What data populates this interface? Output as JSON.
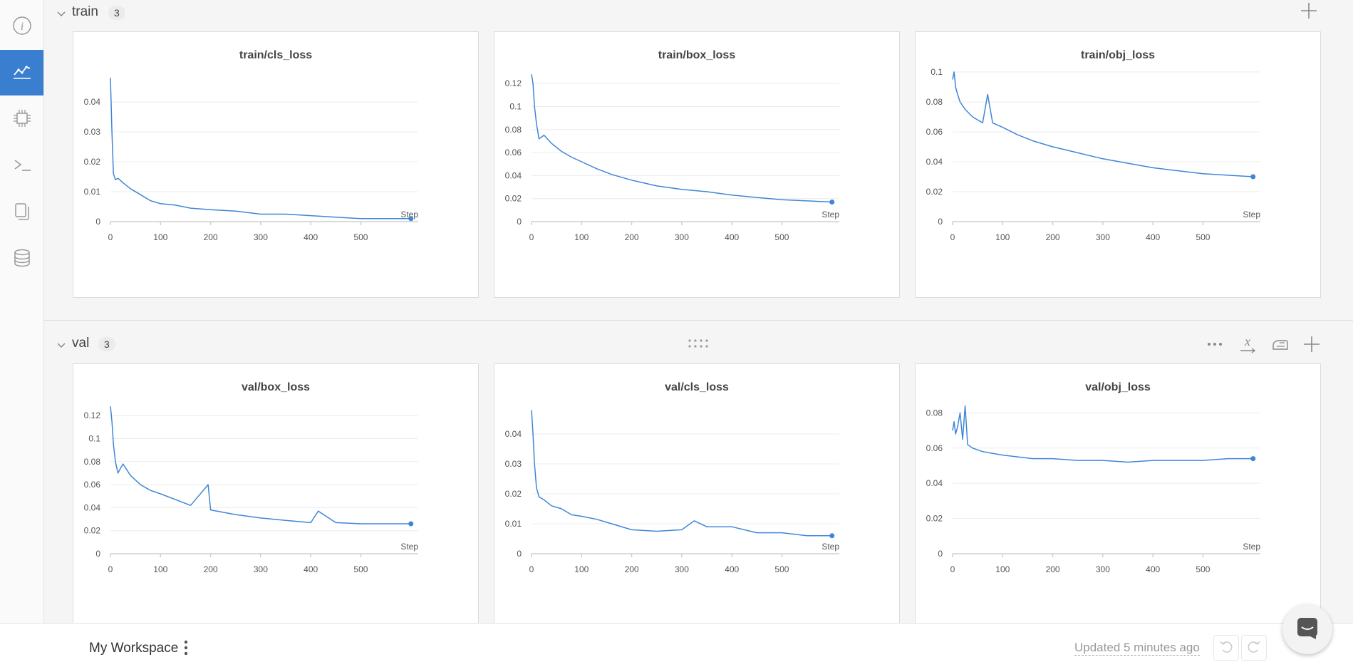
{
  "sidebar": {
    "items": [
      {
        "icon": "info-icon",
        "active": false
      },
      {
        "icon": "charts-icon",
        "active": true
      },
      {
        "icon": "chip-icon",
        "active": false
      },
      {
        "icon": "terminal-icon",
        "active": false
      },
      {
        "icon": "files-icon",
        "active": false
      },
      {
        "icon": "database-icon",
        "active": false
      }
    ]
  },
  "sections": [
    {
      "title": "train",
      "count": "3"
    },
    {
      "title": "val",
      "count": "3"
    }
  ],
  "toolbar": {
    "icons": [
      "more-icon",
      "x-axis-icon",
      "smoothing-icon",
      "add-panel-icon"
    ],
    "drag_icon": "drag-handle-icon"
  },
  "footer": {
    "workspace": "My Workspace",
    "updated": "Updated 5 minutes ago"
  },
  "colors": {
    "accent": "#3a7ed0",
    "line": "#3f86d6"
  },
  "chart_data": [
    {
      "type": "line",
      "title": "train/cls_loss",
      "xlabel": "Step",
      "ylabel": "",
      "xlim": [
        0,
        600
      ],
      "ylim": [
        0,
        0.05
      ],
      "xticks": [
        0,
        100,
        200,
        300,
        400,
        500
      ],
      "yticks": [
        0,
        0.01,
        0.02,
        0.03,
        0.04
      ],
      "x": [
        0,
        3,
        6,
        10,
        15,
        25,
        40,
        60,
        80,
        100,
        130,
        160,
        200,
        250,
        300,
        350,
        400,
        450,
        500,
        550,
        600
      ],
      "y": [
        0.048,
        0.03,
        0.016,
        0.014,
        0.0145,
        0.013,
        0.011,
        0.009,
        0.007,
        0.006,
        0.0055,
        0.0045,
        0.004,
        0.0035,
        0.0025,
        0.0025,
        0.002,
        0.0015,
        0.001,
        0.001,
        0.001
      ]
    },
    {
      "type": "line",
      "title": "train/box_loss",
      "xlabel": "Step",
      "ylabel": "",
      "xlim": [
        0,
        600
      ],
      "ylim": [
        0,
        0.13
      ],
      "xticks": [
        0,
        100,
        200,
        300,
        400,
        500
      ],
      "yticks": [
        0,
        0.02,
        0.04,
        0.06,
        0.08,
        0.1,
        0.12
      ],
      "x": [
        0,
        3,
        6,
        10,
        15,
        25,
        40,
        60,
        80,
        100,
        130,
        160,
        200,
        250,
        300,
        350,
        400,
        450,
        500,
        550,
        600
      ],
      "y": [
        0.128,
        0.12,
        0.1,
        0.085,
        0.072,
        0.075,
        0.068,
        0.061,
        0.056,
        0.052,
        0.046,
        0.041,
        0.036,
        0.031,
        0.028,
        0.026,
        0.023,
        0.021,
        0.019,
        0.018,
        0.017
      ]
    },
    {
      "type": "line",
      "title": "train/obj_loss",
      "xlabel": "Step",
      "ylabel": "",
      "xlim": [
        0,
        600
      ],
      "ylim": [
        0,
        0.1
      ],
      "xticks": [
        0,
        100,
        200,
        300,
        400,
        500
      ],
      "yticks": [
        0,
        0.02,
        0.04,
        0.06,
        0.08,
        0.1
      ],
      "x": [
        0,
        3,
        6,
        10,
        15,
        25,
        40,
        60,
        70,
        80,
        100,
        130,
        160,
        200,
        250,
        300,
        350,
        400,
        450,
        500,
        550,
        600
      ],
      "y": [
        0.095,
        0.1,
        0.09,
        0.085,
        0.08,
        0.075,
        0.07,
        0.066,
        0.085,
        0.066,
        0.063,
        0.058,
        0.054,
        0.05,
        0.046,
        0.042,
        0.039,
        0.036,
        0.034,
        0.032,
        0.031,
        0.03
      ]
    },
    {
      "type": "line",
      "title": "val/box_loss",
      "xlabel": "Step",
      "ylabel": "",
      "xlim": [
        0,
        600
      ],
      "ylim": [
        0,
        0.13
      ],
      "xticks": [
        0,
        100,
        200,
        300,
        400,
        500
      ],
      "yticks": [
        0,
        0.02,
        0.04,
        0.06,
        0.08,
        0.1,
        0.12
      ],
      "x": [
        0,
        3,
        6,
        10,
        15,
        25,
        40,
        60,
        80,
        100,
        130,
        160,
        195,
        200,
        250,
        300,
        350,
        400,
        415,
        450,
        500,
        550,
        600
      ],
      "y": [
        0.128,
        0.115,
        0.095,
        0.08,
        0.07,
        0.078,
        0.068,
        0.06,
        0.055,
        0.052,
        0.047,
        0.042,
        0.06,
        0.038,
        0.034,
        0.031,
        0.029,
        0.027,
        0.037,
        0.027,
        0.026,
        0.026,
        0.026
      ]
    },
    {
      "type": "line",
      "title": "val/cls_loss",
      "xlabel": "Step",
      "ylabel": "",
      "xlim": [
        0,
        600
      ],
      "ylim": [
        0,
        0.05
      ],
      "xticks": [
        0,
        100,
        200,
        300,
        400,
        500
      ],
      "yticks": [
        0,
        0.01,
        0.02,
        0.03,
        0.04
      ],
      "x": [
        0,
        3,
        6,
        10,
        15,
        25,
        40,
        60,
        80,
        100,
        130,
        160,
        200,
        250,
        300,
        325,
        350,
        400,
        450,
        500,
        550,
        600
      ],
      "y": [
        0.048,
        0.04,
        0.03,
        0.022,
        0.019,
        0.018,
        0.016,
        0.015,
        0.013,
        0.0125,
        0.0115,
        0.01,
        0.008,
        0.0075,
        0.008,
        0.011,
        0.009,
        0.009,
        0.007,
        0.007,
        0.006,
        0.006
      ]
    },
    {
      "type": "line",
      "title": "val/obj_loss",
      "xlabel": "Step",
      "ylabel": "",
      "xlim": [
        0,
        600
      ],
      "ylim": [
        0,
        0.085
      ],
      "xticks": [
        0,
        100,
        200,
        300,
        400,
        500
      ],
      "yticks": [
        0,
        0.02,
        0.04,
        0.06,
        0.08
      ],
      "x": [
        0,
        3,
        6,
        10,
        15,
        20,
        25,
        30,
        40,
        60,
        80,
        100,
        130,
        160,
        200,
        250,
        300,
        350,
        400,
        450,
        500,
        550,
        600
      ],
      "y": [
        0.07,
        0.075,
        0.068,
        0.072,
        0.08,
        0.065,
        0.084,
        0.062,
        0.06,
        0.058,
        0.057,
        0.056,
        0.055,
        0.054,
        0.054,
        0.053,
        0.053,
        0.052,
        0.053,
        0.053,
        0.053,
        0.054,
        0.054
      ]
    }
  ]
}
